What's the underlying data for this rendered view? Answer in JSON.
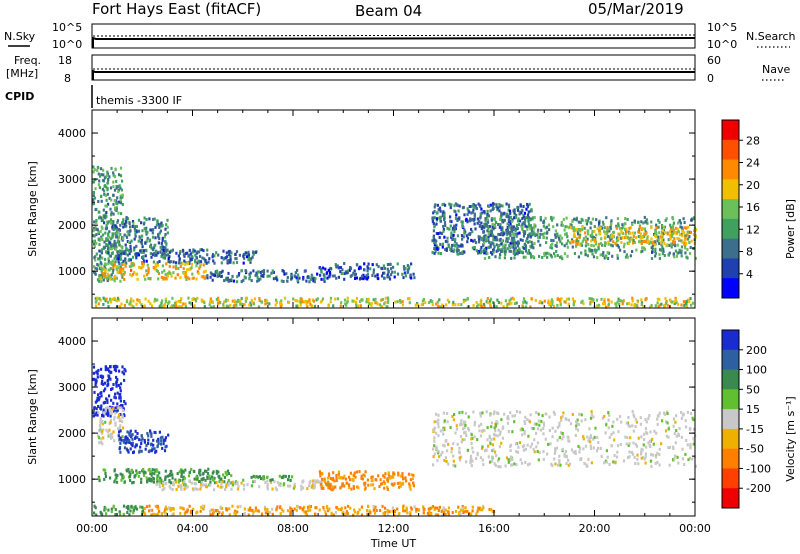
{
  "header": {
    "station": "Fort Hays East (fitACF)",
    "beam": "Beam 04",
    "date": "05/Mar/2019"
  },
  "status_panels": {
    "nsky_label": "N.Sky",
    "nsky_ticks": [
      "10^5",
      "10^0"
    ],
    "nsearch_label": "N.Search",
    "nsearch_ticks": [
      "10^5",
      "10^0"
    ],
    "freq_label": "Freq.",
    "freq_unit": "[MHz]",
    "freq_ticks": [
      "18",
      "8"
    ],
    "nave_label": "Nave",
    "nave_ticks": [
      "60",
      "0"
    ],
    "cpid_label": "CPID",
    "cpid_value": "themis -3300 IF"
  },
  "colors": {
    "power": [
      "#0000ff",
      "#2040b0",
      "#3d6e8c",
      "#40a060",
      "#6cc05a",
      "#f0c000",
      "#ff8a00",
      "#ff5000",
      "#ee0000"
    ],
    "velocity": [
      "#1a2cd0",
      "#2e5fa0",
      "#3a8a50",
      "#60c030",
      "#c8c8c8",
      "#f0b000",
      "#ff8000",
      "#ff4000",
      "#ee0000"
    ]
  },
  "chart_data": [
    {
      "type": "heatmap",
      "name_of_quantity": "Power",
      "xlabel": "",
      "ylabel": "Slant Range [km]",
      "x_ticks": [
        "00:00",
        "04:00",
        "08:00",
        "12:00",
        "16:00",
        "20:00",
        "00:00"
      ],
      "y_ticks": [
        "1000",
        "2000",
        "3000",
        "4000"
      ],
      "xlim_hours": [
        0,
        24
      ],
      "ylim_km": [
        200,
        4500
      ],
      "colorbar_label": "Power [dB]",
      "colorbar_ticks": [
        "28",
        "24",
        "20",
        "16",
        "12",
        "8",
        "4"
      ],
      "colorbar_range": [
        0,
        32
      ],
      "regions": [
        {
          "t0": 0.0,
          "t1": 1.2,
          "r0": 800,
          "r1": 3300,
          "level": 12
        },
        {
          "t0": 0.5,
          "t1": 3.0,
          "r0": 1400,
          "r1": 2200,
          "level": 10
        },
        {
          "t0": 1.0,
          "t1": 6.5,
          "r0": 1200,
          "r1": 1500,
          "level": 8
        },
        {
          "t0": 0.3,
          "t1": 4.5,
          "r0": 850,
          "r1": 1200,
          "level": 20
        },
        {
          "t0": 4.5,
          "t1": 9.5,
          "r0": 800,
          "r1": 1050,
          "level": 8
        },
        {
          "t0": 9.0,
          "t1": 12.8,
          "r0": 850,
          "r1": 1200,
          "level": 7
        },
        {
          "t0": 0.0,
          "t1": 24.0,
          "r0": 250,
          "r1": 450,
          "level": 18
        },
        {
          "t0": 13.5,
          "t1": 17.5,
          "r0": 1400,
          "r1": 2500,
          "level": 8
        },
        {
          "t0": 15.5,
          "t1": 24.0,
          "r0": 1300,
          "r1": 2200,
          "level": 12
        },
        {
          "t0": 19.0,
          "t1": 24.0,
          "r0": 1600,
          "r1": 2000,
          "level": 19
        }
      ]
    },
    {
      "type": "heatmap",
      "name_of_quantity": "Velocity",
      "xlabel": "Time UT",
      "ylabel": "Slant Range [km]",
      "x_ticks": [
        "00:00",
        "04:00",
        "08:00",
        "12:00",
        "16:00",
        "20:00",
        "00:00"
      ],
      "y_ticks": [
        "1000",
        "2000",
        "3000",
        "4000"
      ],
      "xlim_hours": [
        0,
        24
      ],
      "ylim_km": [
        200,
        4500
      ],
      "colorbar_label": "Velocity [m s⁻¹]",
      "colorbar_ticks": [
        "200",
        "100",
        "50",
        "15",
        "-15",
        "-50",
        "-100",
        "-200"
      ],
      "regions": [
        {
          "t0": 0.0,
          "t1": 1.3,
          "r0": 2400,
          "r1": 3500,
          "level": 200
        },
        {
          "t0": 0.2,
          "t1": 1.2,
          "r0": 1800,
          "r1": 2600,
          "level": 0
        },
        {
          "t0": 1.0,
          "t1": 3.0,
          "r0": 1600,
          "r1": 2100,
          "level": 150
        },
        {
          "t0": 0.2,
          "t1": 5.5,
          "r0": 950,
          "r1": 1250,
          "level": 40
        },
        {
          "t0": 2.5,
          "t1": 9.5,
          "r0": 800,
          "r1": 1000,
          "level": 0
        },
        {
          "t0": 4.0,
          "t1": 8.0,
          "r0": 1000,
          "r1": 1100,
          "level": 40
        },
        {
          "t0": 9.0,
          "t1": 12.8,
          "r0": 800,
          "r1": 1200,
          "level": -40
        },
        {
          "t0": 2.0,
          "t1": 16.0,
          "r0": 250,
          "r1": 450,
          "level": -30
        },
        {
          "t0": 0.0,
          "t1": 2.0,
          "r0": 250,
          "r1": 450,
          "level": 40
        },
        {
          "t0": 13.5,
          "t1": 24.0,
          "r0": 1300,
          "r1": 2500,
          "level": 0
        }
      ]
    }
  ]
}
